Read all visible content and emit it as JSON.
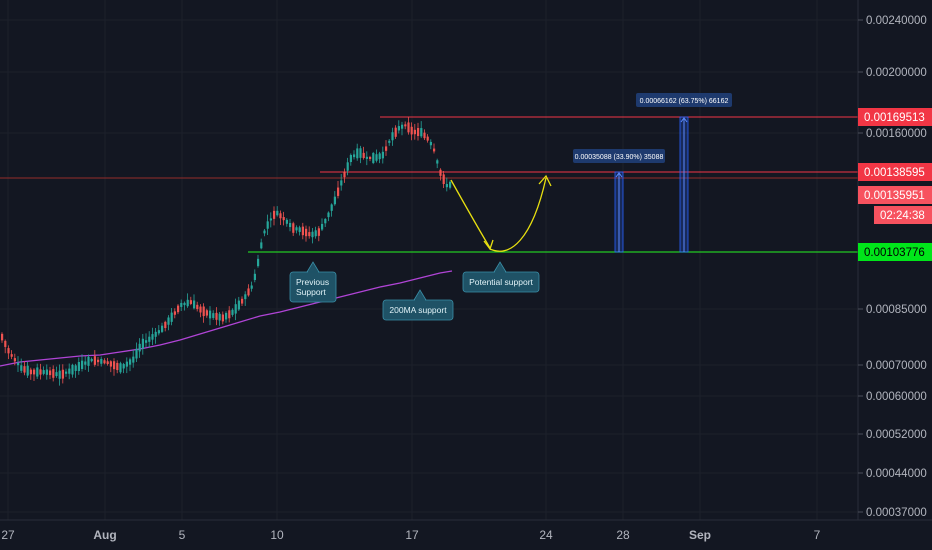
{
  "chart_data": {
    "type": "candlestick",
    "title": "",
    "price_axis": {
      "scale": "log",
      "ticks": [
        "0.00240000",
        "0.00200000",
        "0.00160000",
        "0.00085000",
        "0.00070000",
        "0.00060000",
        "0.00052000",
        "0.00044000",
        "0.00037000"
      ]
    },
    "time_axis": {
      "ticks": [
        "27",
        "Aug",
        "5",
        "10",
        "17",
        "24",
        "28",
        "Sep",
        "7"
      ]
    },
    "price_labels": [
      {
        "text": "0.00169513",
        "color": "#f23645"
      },
      {
        "text": "0.00138595",
        "color": "#f23645"
      },
      {
        "text": "0.00135951",
        "color": "#f7525f"
      },
      {
        "text": "02:24:38",
        "color": "#f7525f"
      },
      {
        "text": "0.00103776",
        "color": "#00e61a"
      }
    ],
    "horizontal_levels": [
      {
        "price": 0.00169513,
        "color": "#f23645"
      },
      {
        "price": 0.00138595,
        "color": "#f23645"
      },
      {
        "price": 0.00103776,
        "color": "#22c922"
      }
    ],
    "annotations": [
      {
        "name": "previous-support-callout",
        "lines": [
          "Previous",
          "Support"
        ]
      },
      {
        "name": "ma200-support-callout",
        "lines": [
          "200MA support"
        ]
      },
      {
        "name": "potential-support-callout",
        "lines": [
          "Potential support"
        ]
      }
    ],
    "measurements": [
      {
        "name": "measure-small",
        "label": "0.00035088 (33.90%) 35088"
      },
      {
        "name": "measure-large",
        "label": "0.00066162 (63.75%) 66162"
      }
    ],
    "colors": {
      "up": "#26a69a",
      "down": "#ef5350",
      "ma": "#b044d6",
      "projection": "#e8e010",
      "callout": "#1f5266",
      "measure": "#2962ff"
    }
  }
}
